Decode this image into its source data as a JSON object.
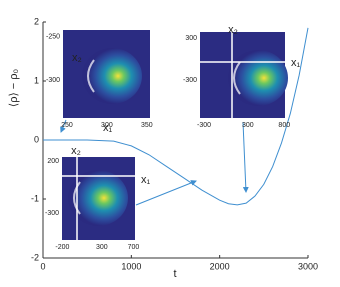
{
  "chart_data": {
    "type": "line",
    "x_label": "t",
    "y_label": "⟨ρ⟩ − ρ₀",
    "xlim": [
      0,
      3000
    ],
    "ylim": [
      -2,
      2
    ],
    "xticks": [
      0,
      1000,
      2000,
      3000
    ],
    "yticks": [
      -2,
      -1,
      0,
      1,
      2
    ],
    "series": [
      {
        "color": "#3f8fd0",
        "x": [
          0,
          500,
          800,
          1000,
          1200,
          1400,
          1600,
          1800,
          2000,
          2100,
          2200,
          2300,
          2400,
          2500,
          2600,
          2700,
          2800,
          2900,
          3000
        ],
        "values": [
          0,
          0,
          -0.02,
          -0.1,
          -0.25,
          -0.45,
          -0.65,
          -0.85,
          -1.02,
          -1.08,
          -1.1,
          -1.07,
          -0.95,
          -0.75,
          -0.45,
          -0.05,
          0.45,
          1.1,
          1.9
        ]
      }
    ],
    "insets": [
      {
        "xlabel": "x₁",
        "ylabel": "x₂",
        "xlim": [
          245,
          354
        ],
        "ylim": [
          -344,
          -242
        ],
        "xticks": [
          250,
          300,
          350
        ],
        "yticks": [
          -250,
          -300
        ]
      },
      {
        "xlabel": "x₁",
        "ylabel": "x₂",
        "xlim": [
          -355,
          810
        ],
        "ylim": [
          -843,
          386
        ],
        "xticks": [
          -300,
          300,
          800
        ],
        "yticks": [
          300,
          -300
        ]
      },
      {
        "xlabel": "x₁",
        "ylabel": "x₂",
        "xlim": [
          -205,
          720
        ],
        "ylim": [
          -560,
          240
        ],
        "xticks": [
          -200,
          300,
          700
        ],
        "yticks": [
          200,
          -300
        ]
      }
    ]
  }
}
